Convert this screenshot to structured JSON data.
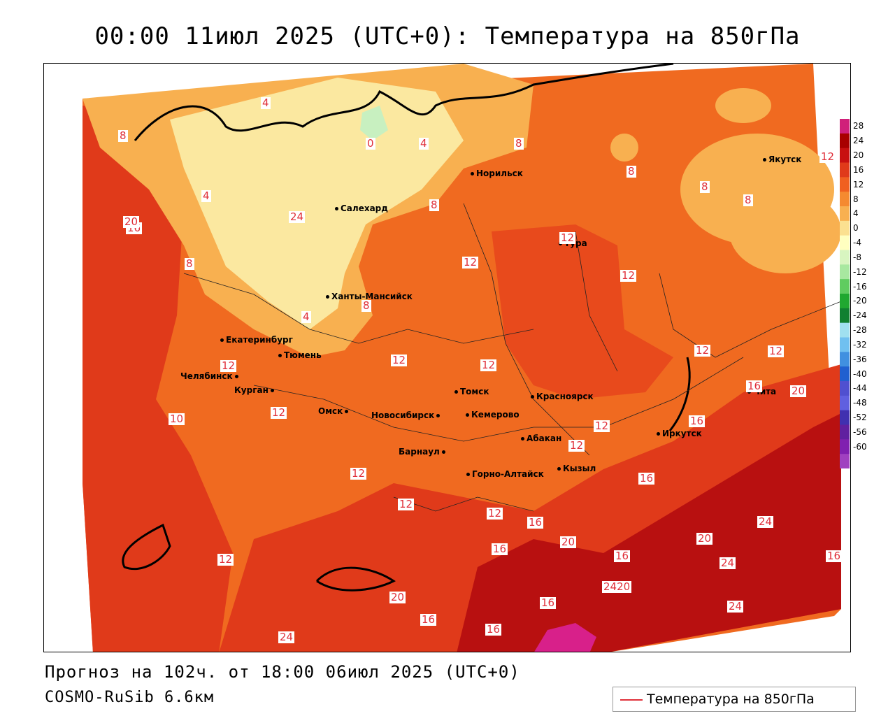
{
  "title": "00:00 11июл 2025 (UTC+0): Температура на 850гПа",
  "footer": {
    "forecast": "Прогноз на 102ч. от 18:00 06июл 2025 (UTC+0)",
    "model": "COSMO-RuSib 6.6км"
  },
  "legend": {
    "label": "Температура на 850гПа",
    "line_color": "#e0303a"
  },
  "colorbar": {
    "ticks": [
      "28",
      "24",
      "20",
      "16",
      "12",
      "8",
      "4",
      "0",
      "-4",
      "-8",
      "-12",
      "-16",
      "-20",
      "-24",
      "-28",
      "-32",
      "-36",
      "-40",
      "-44",
      "-48",
      "-52",
      "-56",
      "-60"
    ],
    "colors": [
      "#d0207a",
      "#a80000",
      "#c81010",
      "#e03a1a",
      "#f06020",
      "#f58a30",
      "#f8b050",
      "#fbe090",
      "#ffffc0",
      "#d8f5c0",
      "#a8e8a0",
      "#60cc60",
      "#20a830",
      "#108030",
      "#a0e0f0",
      "#70c0f0",
      "#4090e0",
      "#2060d0",
      "#5050d0",
      "#6060e0",
      "#4030b0",
      "#6020a0",
      "#8020b0",
      "#a040c0"
    ]
  },
  "cities": [
    {
      "name": "Норильск"
    },
    {
      "name": "Якутск"
    },
    {
      "name": "Салехард"
    },
    {
      "name": "Тура"
    },
    {
      "name": "Ханты-Мансийск"
    },
    {
      "name": "Екатеринбург"
    },
    {
      "name": "Тюмень"
    },
    {
      "name": "Челябинск"
    },
    {
      "name": "Курган"
    },
    {
      "name": "Омск"
    },
    {
      "name": "Новосибирск"
    },
    {
      "name": "Томск"
    },
    {
      "name": "Кемерово"
    },
    {
      "name": "Красноярск"
    },
    {
      "name": "Барнаул"
    },
    {
      "name": "Абакан"
    },
    {
      "name": "Иркутск"
    },
    {
      "name": "Чита"
    },
    {
      "name": "Горно-Алтайск"
    },
    {
      "name": "Кызыл"
    }
  ],
  "contour_labels": [
    "4",
    "0",
    "4",
    "8",
    "8",
    "8",
    "8",
    "8",
    "4",
    "24",
    "16",
    "8",
    "12",
    "12",
    "12",
    "8",
    "4",
    "8",
    "12",
    "12",
    "12",
    "12",
    "12",
    "16",
    "20",
    "16",
    "10",
    "12",
    "12",
    "12",
    "12",
    "16",
    "12",
    "12",
    "16",
    "16",
    "12",
    "16",
    "20",
    "24",
    "16",
    "20",
    "24",
    "20",
    "16",
    "24",
    "2420",
    "16",
    "24",
    "16",
    "12",
    "20"
  ]
}
